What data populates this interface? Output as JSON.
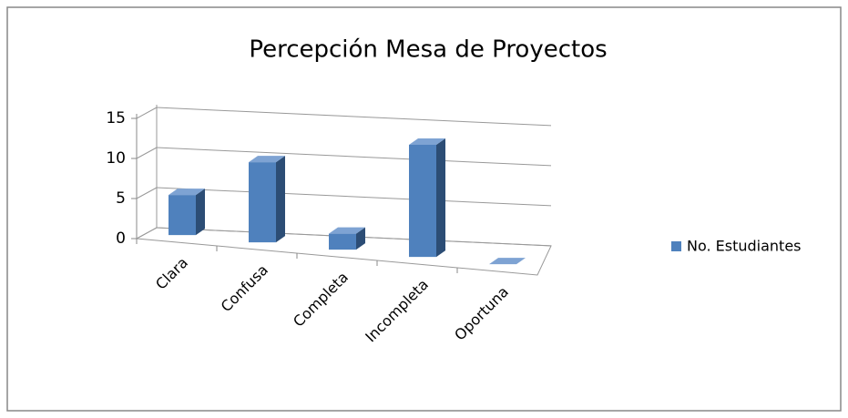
{
  "chart_data": {
    "type": "bar",
    "title": "Percepción Mesa de Proyectos",
    "categories": [
      "Clara",
      "Confusa",
      "Completa",
      "Incompleta",
      "Oportuna"
    ],
    "series": [
      {
        "name": "No. Estudiantes",
        "color": "#4f81bd",
        "values": [
          5,
          10,
          2,
          14,
          0
        ]
      }
    ],
    "ylim": [
      0,
      15
    ],
    "yticks": [
      0,
      5,
      10,
      15
    ],
    "grid": true
  }
}
